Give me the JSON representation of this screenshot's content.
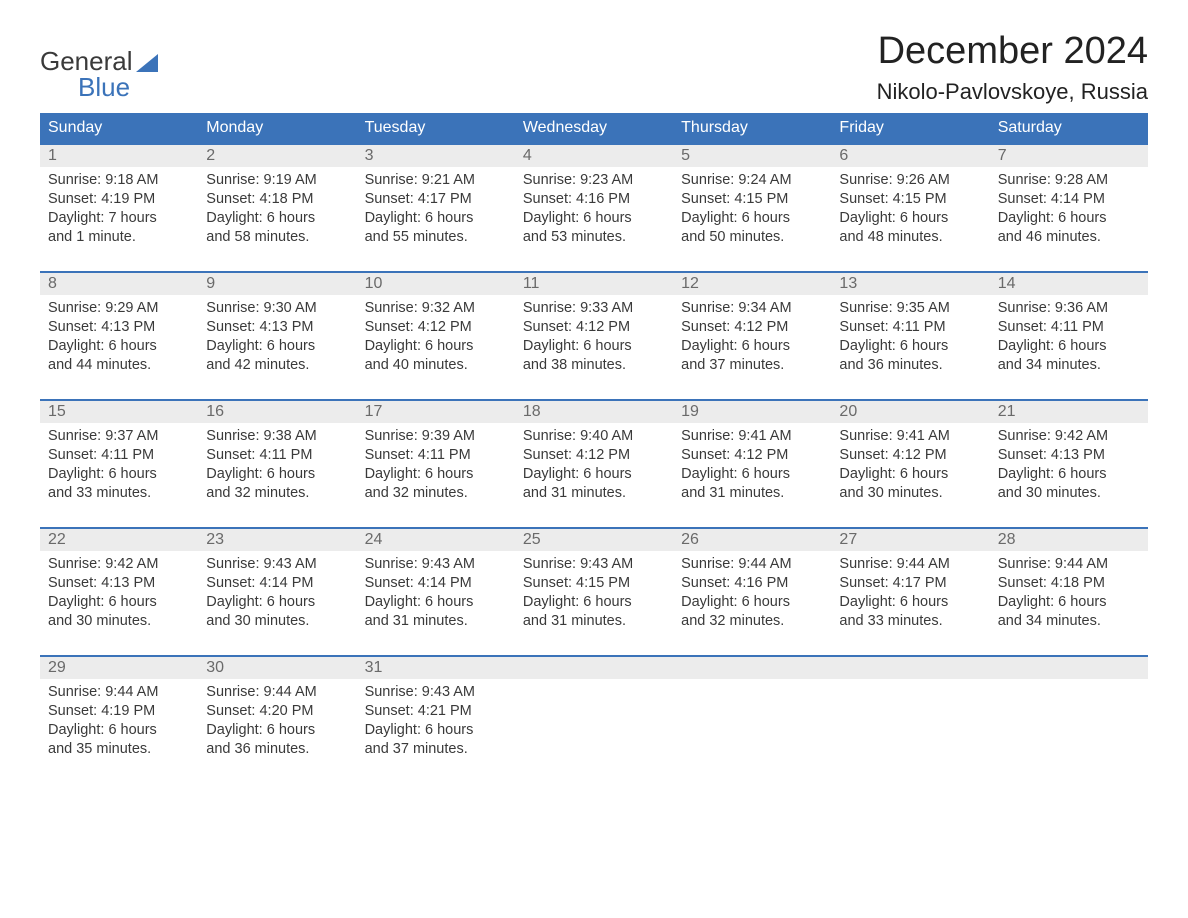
{
  "brand": {
    "line1": "General",
    "line2": "Blue"
  },
  "title": "December 2024",
  "location": "Nikolo-Pavlovskoye, Russia",
  "colors": {
    "header_bg": "#3b73b9",
    "header_text": "#ffffff",
    "daynum_bg": "#ececec",
    "daynum_text": "#6a6a6a",
    "body_text": "#3a3a3a",
    "week_border": "#3b73b9",
    "brand_blue": "#3b73b9",
    "page_bg": "#ffffff"
  },
  "fonts": {
    "title_size_pt": 28,
    "location_size_pt": 16,
    "weekday_size_pt": 12,
    "daynum_size_pt": 12,
    "body_size_pt": 11,
    "family": "Arial"
  },
  "weekdays": [
    "Sunday",
    "Monday",
    "Tuesday",
    "Wednesday",
    "Thursday",
    "Friday",
    "Saturday"
  ],
  "weeks": [
    [
      {
        "num": "1",
        "sunrise": "Sunrise: 9:18 AM",
        "sunset": "Sunset: 4:19 PM",
        "day1": "Daylight: 7 hours",
        "day2": "and 1 minute."
      },
      {
        "num": "2",
        "sunrise": "Sunrise: 9:19 AM",
        "sunset": "Sunset: 4:18 PM",
        "day1": "Daylight: 6 hours",
        "day2": "and 58 minutes."
      },
      {
        "num": "3",
        "sunrise": "Sunrise: 9:21 AM",
        "sunset": "Sunset: 4:17 PM",
        "day1": "Daylight: 6 hours",
        "day2": "and 55 minutes."
      },
      {
        "num": "4",
        "sunrise": "Sunrise: 9:23 AM",
        "sunset": "Sunset: 4:16 PM",
        "day1": "Daylight: 6 hours",
        "day2": "and 53 minutes."
      },
      {
        "num": "5",
        "sunrise": "Sunrise: 9:24 AM",
        "sunset": "Sunset: 4:15 PM",
        "day1": "Daylight: 6 hours",
        "day2": "and 50 minutes."
      },
      {
        "num": "6",
        "sunrise": "Sunrise: 9:26 AM",
        "sunset": "Sunset: 4:15 PM",
        "day1": "Daylight: 6 hours",
        "day2": "and 48 minutes."
      },
      {
        "num": "7",
        "sunrise": "Sunrise: 9:28 AM",
        "sunset": "Sunset: 4:14 PM",
        "day1": "Daylight: 6 hours",
        "day2": "and 46 minutes."
      }
    ],
    [
      {
        "num": "8",
        "sunrise": "Sunrise: 9:29 AM",
        "sunset": "Sunset: 4:13 PM",
        "day1": "Daylight: 6 hours",
        "day2": "and 44 minutes."
      },
      {
        "num": "9",
        "sunrise": "Sunrise: 9:30 AM",
        "sunset": "Sunset: 4:13 PM",
        "day1": "Daylight: 6 hours",
        "day2": "and 42 minutes."
      },
      {
        "num": "10",
        "sunrise": "Sunrise: 9:32 AM",
        "sunset": "Sunset: 4:12 PM",
        "day1": "Daylight: 6 hours",
        "day2": "and 40 minutes."
      },
      {
        "num": "11",
        "sunrise": "Sunrise: 9:33 AM",
        "sunset": "Sunset: 4:12 PM",
        "day1": "Daylight: 6 hours",
        "day2": "and 38 minutes."
      },
      {
        "num": "12",
        "sunrise": "Sunrise: 9:34 AM",
        "sunset": "Sunset: 4:12 PM",
        "day1": "Daylight: 6 hours",
        "day2": "and 37 minutes."
      },
      {
        "num": "13",
        "sunrise": "Sunrise: 9:35 AM",
        "sunset": "Sunset: 4:11 PM",
        "day1": "Daylight: 6 hours",
        "day2": "and 36 minutes."
      },
      {
        "num": "14",
        "sunrise": "Sunrise: 9:36 AM",
        "sunset": "Sunset: 4:11 PM",
        "day1": "Daylight: 6 hours",
        "day2": "and 34 minutes."
      }
    ],
    [
      {
        "num": "15",
        "sunrise": "Sunrise: 9:37 AM",
        "sunset": "Sunset: 4:11 PM",
        "day1": "Daylight: 6 hours",
        "day2": "and 33 minutes."
      },
      {
        "num": "16",
        "sunrise": "Sunrise: 9:38 AM",
        "sunset": "Sunset: 4:11 PM",
        "day1": "Daylight: 6 hours",
        "day2": "and 32 minutes."
      },
      {
        "num": "17",
        "sunrise": "Sunrise: 9:39 AM",
        "sunset": "Sunset: 4:11 PM",
        "day1": "Daylight: 6 hours",
        "day2": "and 32 minutes."
      },
      {
        "num": "18",
        "sunrise": "Sunrise: 9:40 AM",
        "sunset": "Sunset: 4:12 PM",
        "day1": "Daylight: 6 hours",
        "day2": "and 31 minutes."
      },
      {
        "num": "19",
        "sunrise": "Sunrise: 9:41 AM",
        "sunset": "Sunset: 4:12 PM",
        "day1": "Daylight: 6 hours",
        "day2": "and 31 minutes."
      },
      {
        "num": "20",
        "sunrise": "Sunrise: 9:41 AM",
        "sunset": "Sunset: 4:12 PM",
        "day1": "Daylight: 6 hours",
        "day2": "and 30 minutes."
      },
      {
        "num": "21",
        "sunrise": "Sunrise: 9:42 AM",
        "sunset": "Sunset: 4:13 PM",
        "day1": "Daylight: 6 hours",
        "day2": "and 30 minutes."
      }
    ],
    [
      {
        "num": "22",
        "sunrise": "Sunrise: 9:42 AM",
        "sunset": "Sunset: 4:13 PM",
        "day1": "Daylight: 6 hours",
        "day2": "and 30 minutes."
      },
      {
        "num": "23",
        "sunrise": "Sunrise: 9:43 AM",
        "sunset": "Sunset: 4:14 PM",
        "day1": "Daylight: 6 hours",
        "day2": "and 30 minutes."
      },
      {
        "num": "24",
        "sunrise": "Sunrise: 9:43 AM",
        "sunset": "Sunset: 4:14 PM",
        "day1": "Daylight: 6 hours",
        "day2": "and 31 minutes."
      },
      {
        "num": "25",
        "sunrise": "Sunrise: 9:43 AM",
        "sunset": "Sunset: 4:15 PM",
        "day1": "Daylight: 6 hours",
        "day2": "and 31 minutes."
      },
      {
        "num": "26",
        "sunrise": "Sunrise: 9:44 AM",
        "sunset": "Sunset: 4:16 PM",
        "day1": "Daylight: 6 hours",
        "day2": "and 32 minutes."
      },
      {
        "num": "27",
        "sunrise": "Sunrise: 9:44 AM",
        "sunset": "Sunset: 4:17 PM",
        "day1": "Daylight: 6 hours",
        "day2": "and 33 minutes."
      },
      {
        "num": "28",
        "sunrise": "Sunrise: 9:44 AM",
        "sunset": "Sunset: 4:18 PM",
        "day1": "Daylight: 6 hours",
        "day2": "and 34 minutes."
      }
    ],
    [
      {
        "num": "29",
        "sunrise": "Sunrise: 9:44 AM",
        "sunset": "Sunset: 4:19 PM",
        "day1": "Daylight: 6 hours",
        "day2": "and 35 minutes."
      },
      {
        "num": "30",
        "sunrise": "Sunrise: 9:44 AM",
        "sunset": "Sunset: 4:20 PM",
        "day1": "Daylight: 6 hours",
        "day2": "and 36 minutes."
      },
      {
        "num": "31",
        "sunrise": "Sunrise: 9:43 AM",
        "sunset": "Sunset: 4:21 PM",
        "day1": "Daylight: 6 hours",
        "day2": "and 37 minutes."
      },
      null,
      null,
      null,
      null
    ]
  ]
}
